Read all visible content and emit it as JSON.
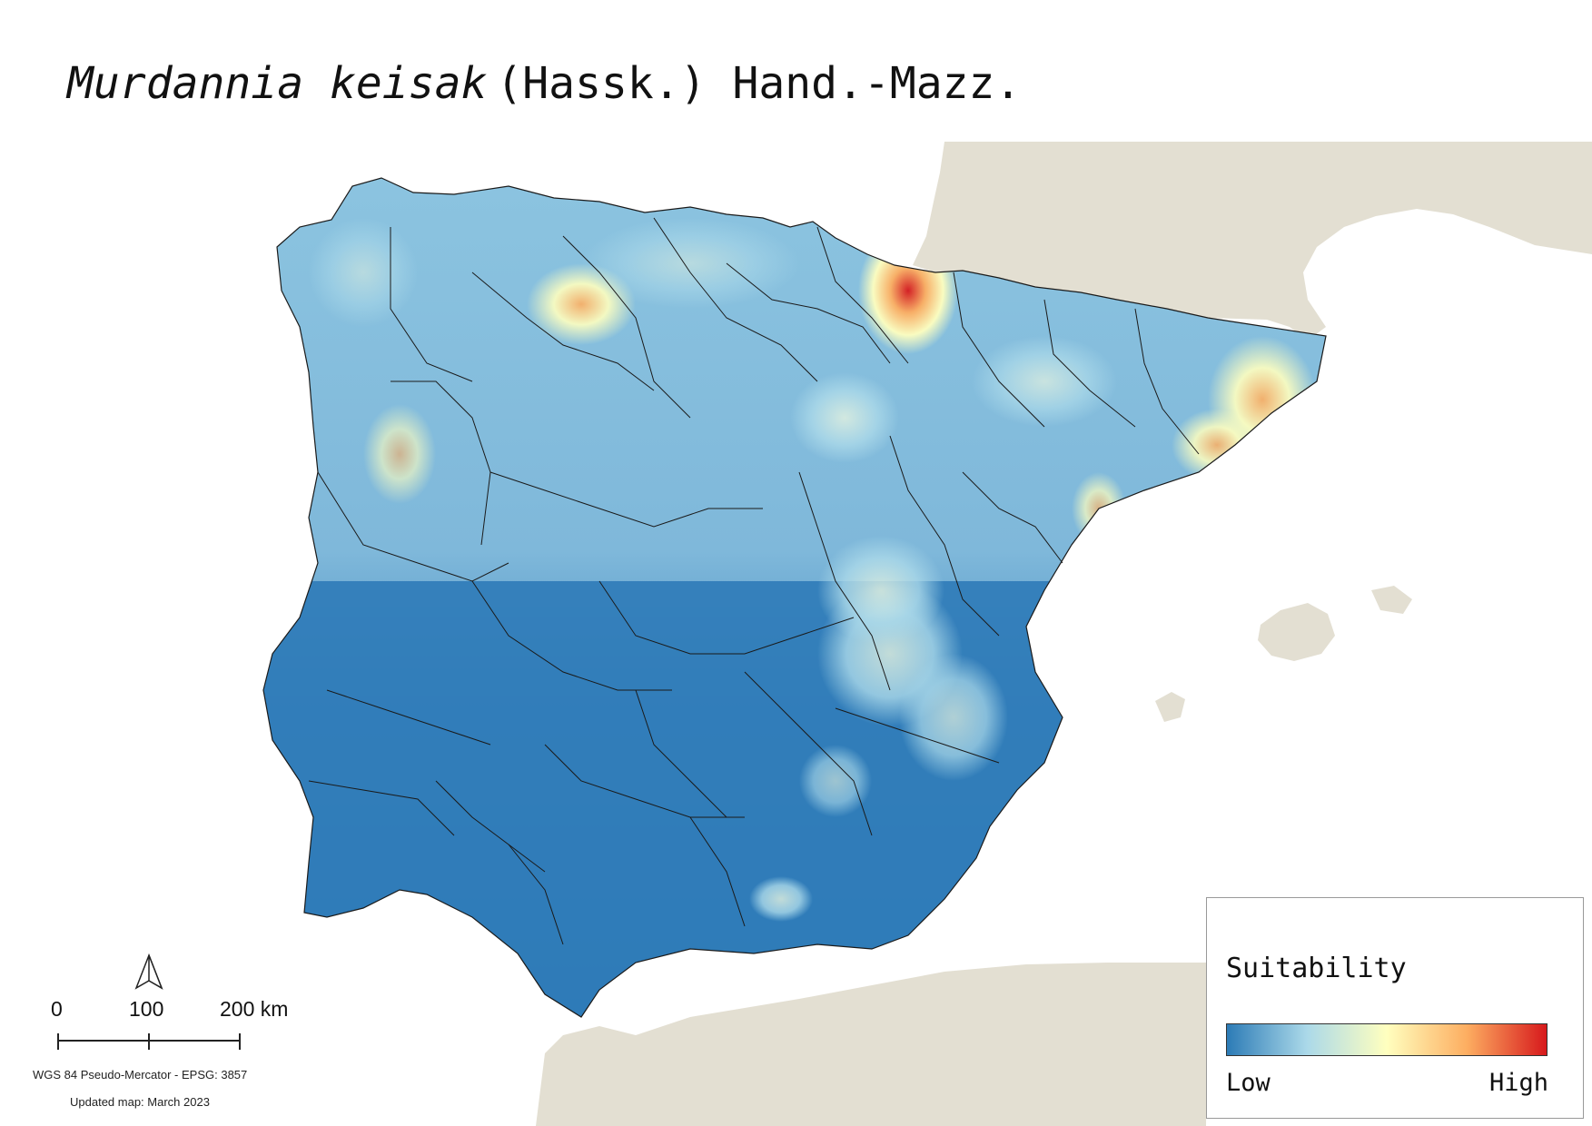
{
  "title": {
    "species": "Murdannia keisak",
    "author": "(Hassk.) Hand.-Mazz."
  },
  "legend": {
    "title": "Suitability",
    "low_label": "Low",
    "high_label": "High",
    "gradient_colors": [
      "#2c7bb6",
      "#abd9e9",
      "#ffffbf",
      "#fdae61",
      "#d7191c"
    ]
  },
  "scale_bar": {
    "labels": [
      "0",
      "100",
      "200 km"
    ]
  },
  "crs": "WGS 84 Pseudo-Mercator  - EPSG: 3857",
  "updated": "Updated map: March 2023",
  "north_arrow": {
    "icon": "north-arrow-icon"
  },
  "colors": {
    "land_background": "#e3dfd2",
    "low_suitability": "#2c7bb6",
    "high_suitability": "#d7191c",
    "boundary": "#1a1a1a"
  }
}
